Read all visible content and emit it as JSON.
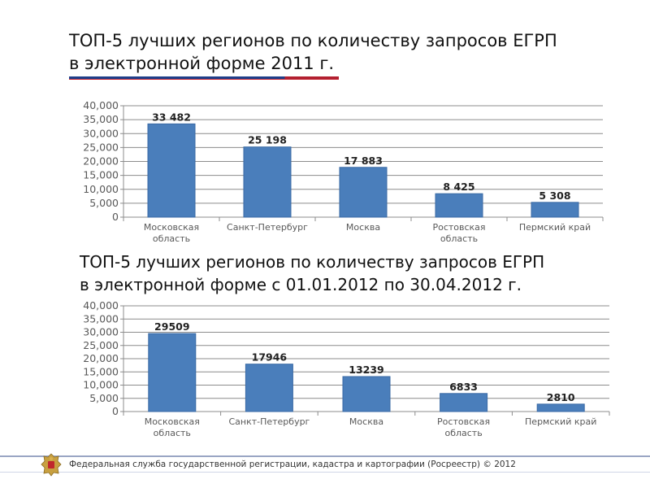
{
  "header": {
    "title_line1": "ТОП-5 лучших регионов по количеству запросов ЕГРП",
    "title_line2": "в электронной форме 2011 г."
  },
  "second_header": {
    "title_line1": "ТОП-5 лучших регионов по количеству запросов ЕГРП",
    "title_line2": "в электронной форме с 01.01.2012 по 30.04.2012 г."
  },
  "footer": {
    "text": "Федеральная служба государственной регистрации, кадастра и картографии (Росреестр) © 2012"
  },
  "colors": {
    "bar": "#4a7ebb",
    "bar_border": "#3a6aa5",
    "grid": "#8c8c8c",
    "axis_text": "#595959"
  },
  "chart_data": [
    {
      "type": "bar",
      "categories": [
        [
          "Московская",
          "область"
        ],
        [
          "Санкт-Петербург"
        ],
        [
          "Москва"
        ],
        [
          "Ростовская",
          "область"
        ],
        [
          "Пермский край"
        ]
      ],
      "values": [
        33482,
        25198,
        17883,
        8425,
        5308
      ],
      "data_labels": [
        "33 482",
        "25 198",
        "17 883",
        "8 425",
        "5 308"
      ],
      "y_ticks": [
        "0",
        "5,000",
        "10,000",
        "15,000",
        "20,000",
        "25,000",
        "30,000",
        "35,000",
        "40,000"
      ],
      "ylim": [
        0,
        40000
      ],
      "grid": true
    },
    {
      "type": "bar",
      "categories": [
        [
          "Московская",
          "область"
        ],
        [
          "Санкт-Петербург"
        ],
        [
          "Москва"
        ],
        [
          "Ростовская",
          "область"
        ],
        [
          "Пермский край"
        ]
      ],
      "values": [
        29509,
        17946,
        13239,
        6833,
        2810
      ],
      "data_labels": [
        "29509",
        "17946",
        "13239",
        "6833",
        "2810"
      ],
      "y_ticks": [
        "0",
        "5,000",
        "10,000",
        "15,000",
        "20,000",
        "25,000",
        "30,000",
        "35,000",
        "40,000"
      ],
      "ylim": [
        0,
        40000
      ],
      "grid": true
    }
  ]
}
